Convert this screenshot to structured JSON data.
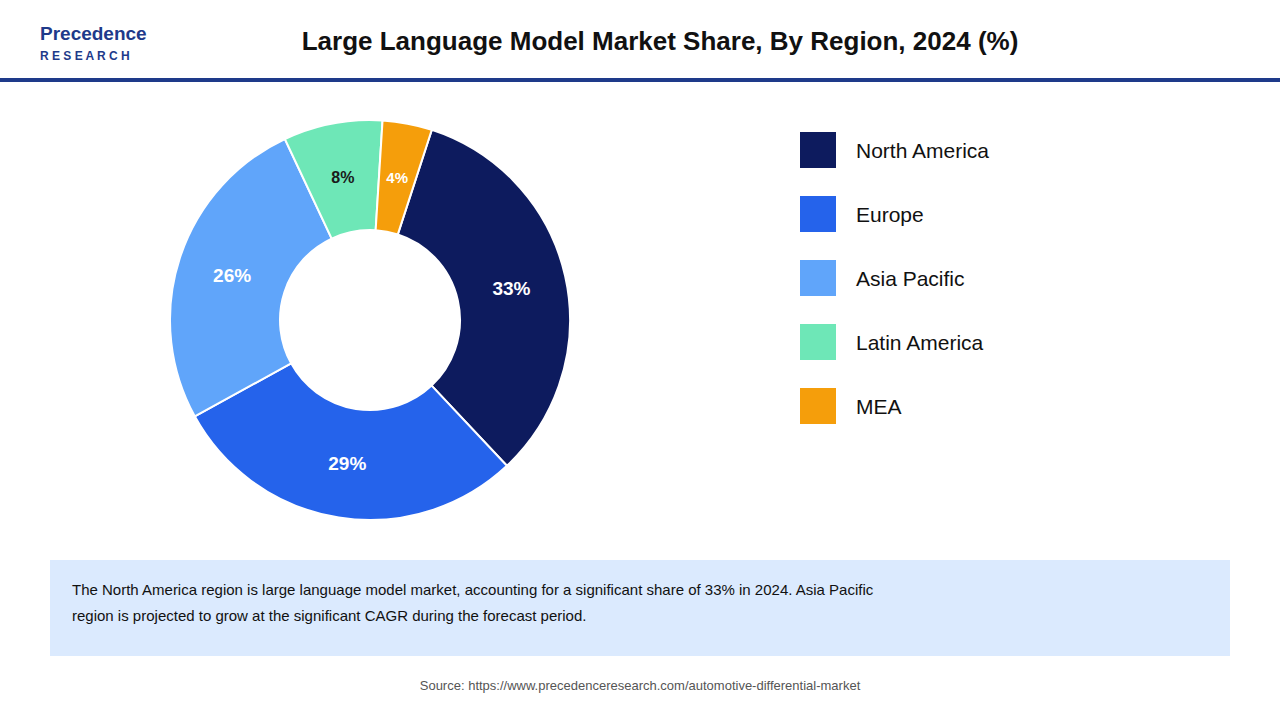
{
  "chart_data": {
    "type": "donut",
    "title": "Large Language Model Market Share, By Region, 2024 (%)",
    "categories": [
      "North America",
      "Europe",
      "Asia Pacific",
      "Latin America",
      "MEA"
    ],
    "values": [
      33,
      29,
      26,
      8,
      4
    ],
    "value_labels": [
      "33%",
      "29%",
      "26%",
      "8%",
      "4%"
    ],
    "colors": [
      "#0d1b5e",
      "#2563eb",
      "#60a5fa",
      "#6ee7b7",
      "#f59e0b"
    ],
    "data_labels": true,
    "legend": "right",
    "annotations": [
      "Precedence",
      "R E S E A R C H",
      "The North America region is large language model market, accounting for a significant share of 33% in 2024. Asia Pacific\nregion is projected to grow at the significant CAGR during the forecast period.",
      "Source: https://www.precedenceresearch.com/automotive-differential-market"
    ]
  }
}
